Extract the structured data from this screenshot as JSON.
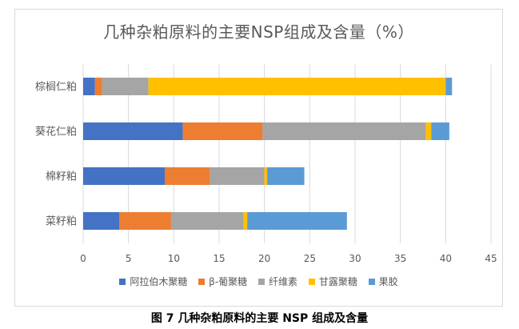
{
  "chart_data": {
    "type": "bar",
    "orientation": "horizontal",
    "stacked": true,
    "title": "几种杂粕原料的主要NSP组成及含量（%）",
    "categories": [
      "棕榈仁粕",
      "葵花仁粕",
      "棉籽粕",
      "菜籽粕"
    ],
    "series": [
      {
        "name": "阿拉伯木聚糖",
        "color": "#4472C4",
        "values": [
          1.3,
          11.0,
          9.0,
          4.0
        ]
      },
      {
        "name": "β-葡聚糖",
        "color": "#ED7D31",
        "values": [
          0.8,
          8.8,
          5.0,
          5.7
        ]
      },
      {
        "name": "纤维素",
        "color": "#A5A5A5",
        "values": [
          5.1,
          18.0,
          6.0,
          8.0
        ]
      },
      {
        "name": "甘露聚糖",
        "color": "#FFC000",
        "values": [
          32.8,
          0.6,
          0.3,
          0.4
        ]
      },
      {
        "name": "果胶",
        "color": "#5B9BD5",
        "values": [
          0.7,
          2.0,
          4.1,
          11.0
        ]
      }
    ],
    "xlim": [
      0,
      45
    ],
    "xticks": [
      0,
      5,
      10,
      15,
      20,
      25,
      30,
      35,
      40,
      45
    ],
    "grid": true,
    "legend_position": "bottom"
  },
  "legend_labels": [
    "阿拉伯木聚糖",
    "β-葡聚糖",
    "纤维素",
    "甘露聚糖",
    "果胶"
  ],
  "caption": "图 7 几种杂粕原料的主要 NSP 组成及含量"
}
